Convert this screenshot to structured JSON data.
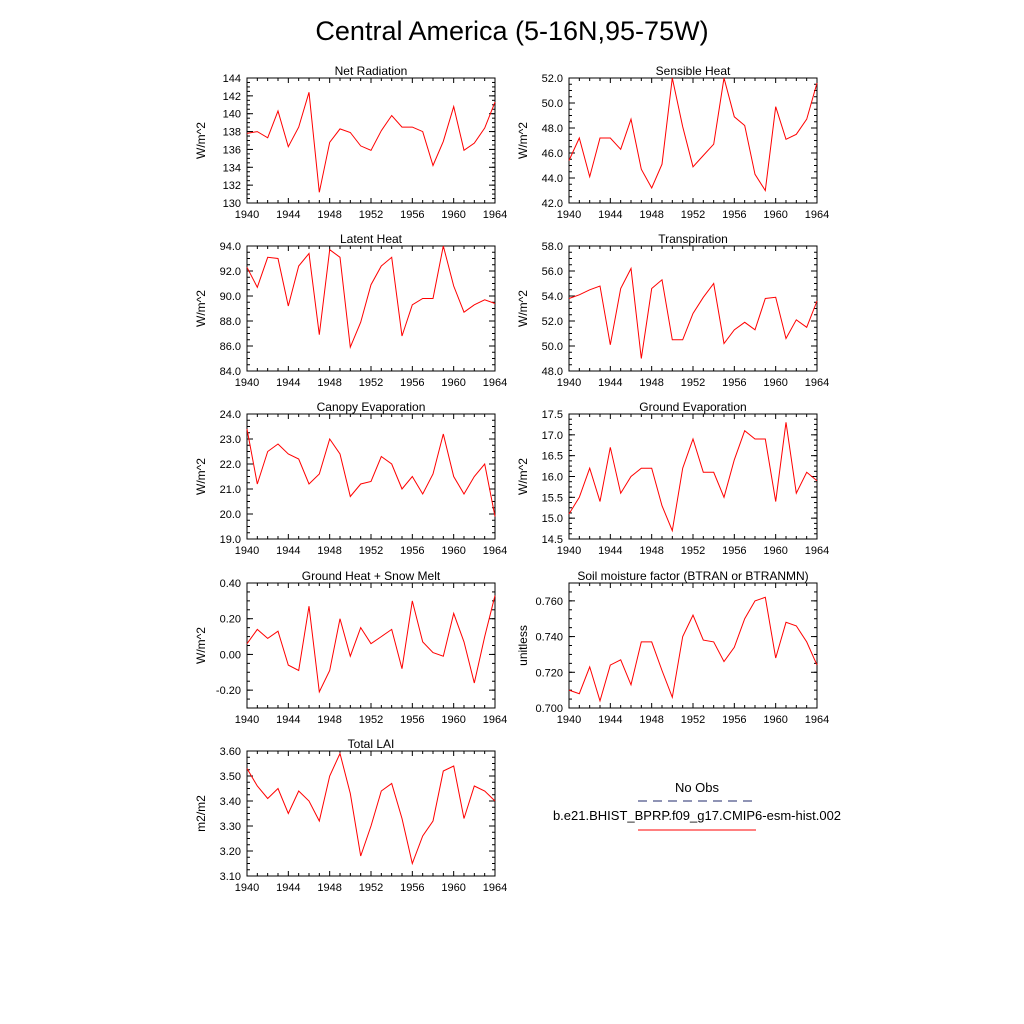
{
  "page": {
    "title": "Central America (5-16N,95-75W)"
  },
  "legend": {
    "entries": [
      {
        "label": "No Obs",
        "color": "#1f2a6b",
        "style": "dashed"
      },
      {
        "label": "b.e21.BHIST_BPRP.f09_g17.CMIP6-esm-hist.002",
        "color": "#ff0000",
        "style": "solid"
      }
    ]
  },
  "chart_data": [
    {
      "type": "line",
      "title": "Net Radiation",
      "ylabel": "W/m^2",
      "xlim": [
        1940,
        1964
      ],
      "ylim": [
        130,
        144
      ],
      "xticks": [
        "1940",
        "1944",
        "1948",
        "1952",
        "1956",
        "1960",
        "1964"
      ],
      "yticks": [
        "130",
        "132",
        "134",
        "136",
        "138",
        "140",
        "142",
        "144"
      ],
      "series": [
        {
          "color": "#ff0000",
          "x": [
            1940,
            1941,
            1942,
            1943,
            1944,
            1945,
            1946,
            1947,
            1948,
            1949,
            1950,
            1951,
            1952,
            1953,
            1954,
            1955,
            1956,
            1957,
            1958,
            1959,
            1960,
            1961,
            1962,
            1963,
            1964
          ],
          "values": [
            137.8,
            138.0,
            137.3,
            140.3,
            136.3,
            138.5,
            142.4,
            131.2,
            136.8,
            138.3,
            137.9,
            136.4,
            135.9,
            138.1,
            139.8,
            138.5,
            138.5,
            138.0,
            134.2,
            136.9,
            140.8,
            135.9,
            136.7,
            138.4,
            141.3
          ]
        }
      ]
    },
    {
      "type": "line",
      "title": "Sensible Heat",
      "ylabel": "W/m^2",
      "xlim": [
        1940,
        1964
      ],
      "ylim": [
        42.0,
        52.0
      ],
      "xticks": [
        "1940",
        "1944",
        "1948",
        "1952",
        "1956",
        "1960",
        "1964"
      ],
      "yticks": [
        "42.0",
        "44.0",
        "46.0",
        "48.0",
        "50.0",
        "52.0"
      ],
      "series": [
        {
          "color": "#ff0000",
          "x": [
            1940,
            1941,
            1942,
            1943,
            1944,
            1945,
            1946,
            1947,
            1948,
            1949,
            1950,
            1951,
            1952,
            1953,
            1954,
            1955,
            1956,
            1957,
            1958,
            1959,
            1960,
            1961,
            1962,
            1963,
            1964
          ],
          "values": [
            45.4,
            47.2,
            44.1,
            47.2,
            47.2,
            46.3,
            48.7,
            44.7,
            43.2,
            45.1,
            52.0,
            48.1,
            44.9,
            45.8,
            46.7,
            52.0,
            48.9,
            48.2,
            44.3,
            43.0,
            49.7,
            47.1,
            47.5,
            48.7,
            51.6
          ]
        }
      ]
    },
    {
      "type": "line",
      "title": "Latent Heat",
      "ylabel": "W/m^2",
      "xlim": [
        1940,
        1964
      ],
      "ylim": [
        84.0,
        94.0
      ],
      "xticks": [
        "1940",
        "1944",
        "1948",
        "1952",
        "1956",
        "1960",
        "1964"
      ],
      "yticks": [
        "84.0",
        "86.0",
        "88.0",
        "90.0",
        "92.0",
        "94.0"
      ],
      "series": [
        {
          "color": "#ff0000",
          "x": [
            1940,
            1941,
            1942,
            1943,
            1944,
            1945,
            1946,
            1947,
            1948,
            1949,
            1950,
            1951,
            1952,
            1953,
            1954,
            1955,
            1956,
            1957,
            1958,
            1959,
            1960,
            1961,
            1962,
            1963,
            1964
          ],
          "values": [
            92.3,
            90.7,
            93.1,
            93.0,
            89.2,
            92.4,
            93.4,
            86.9,
            93.7,
            93.1,
            85.9,
            87.9,
            90.9,
            92.4,
            93.1,
            86.8,
            89.3,
            89.8,
            89.8,
            94.0,
            90.8,
            88.7,
            89.3,
            89.7,
            89.4
          ]
        }
      ]
    },
    {
      "type": "line",
      "title": "Transpiration",
      "ylabel": "W/m^2",
      "xlim": [
        1940,
        1964
      ],
      "ylim": [
        48.0,
        58.0
      ],
      "xticks": [
        "1940",
        "1944",
        "1948",
        "1952",
        "1956",
        "1960",
        "1964"
      ],
      "yticks": [
        "48.0",
        "50.0",
        "52.0",
        "54.0",
        "56.0",
        "58.0"
      ],
      "series": [
        {
          "color": "#ff0000",
          "x": [
            1940,
            1941,
            1942,
            1943,
            1944,
            1945,
            1946,
            1947,
            1948,
            1949,
            1950,
            1951,
            1952,
            1953,
            1954,
            1955,
            1956,
            1957,
            1958,
            1959,
            1960,
            1961,
            1962,
            1963,
            1964
          ],
          "values": [
            53.8,
            54.1,
            54.5,
            54.8,
            50.1,
            54.6,
            56.2,
            49.0,
            54.6,
            55.3,
            50.5,
            50.5,
            52.6,
            53.9,
            55.0,
            50.2,
            51.3,
            51.9,
            51.3,
            53.8,
            53.9,
            50.6,
            52.1,
            51.5,
            53.6
          ]
        }
      ]
    },
    {
      "type": "line",
      "title": "Canopy Evaporation",
      "ylabel": "W/m^2",
      "xlim": [
        1940,
        1964
      ],
      "ylim": [
        19.0,
        24.0
      ],
      "xticks": [
        "1940",
        "1944",
        "1948",
        "1952",
        "1956",
        "1960",
        "1964"
      ],
      "yticks": [
        "19.0",
        "20.0",
        "21.0",
        "22.0",
        "23.0",
        "24.0"
      ],
      "series": [
        {
          "color": "#ff0000",
          "x": [
            1940,
            1941,
            1942,
            1943,
            1944,
            1945,
            1946,
            1947,
            1948,
            1949,
            1950,
            1951,
            1952,
            1953,
            1954,
            1955,
            1956,
            1957,
            1958,
            1959,
            1960,
            1961,
            1962,
            1963,
            1964
          ],
          "values": [
            23.4,
            21.2,
            22.5,
            22.8,
            22.4,
            22.2,
            21.2,
            21.6,
            23.0,
            22.4,
            20.7,
            21.2,
            21.3,
            22.3,
            22.0,
            21.0,
            21.5,
            20.8,
            21.6,
            23.2,
            21.5,
            20.8,
            21.5,
            22.0,
            19.9
          ]
        }
      ]
    },
    {
      "type": "line",
      "title": "Ground Evaporation",
      "ylabel": "W/m^2",
      "xlim": [
        1940,
        1964
      ],
      "ylim": [
        14.5,
        17.5
      ],
      "xticks": [
        "1940",
        "1944",
        "1948",
        "1952",
        "1956",
        "1960",
        "1964"
      ],
      "yticks": [
        "14.5",
        "15.0",
        "15.5",
        "16.0",
        "16.5",
        "17.0",
        "17.5"
      ],
      "series": [
        {
          "color": "#ff0000",
          "x": [
            1940,
            1941,
            1942,
            1943,
            1944,
            1945,
            1946,
            1947,
            1948,
            1949,
            1950,
            1951,
            1952,
            1953,
            1954,
            1955,
            1956,
            1957,
            1958,
            1959,
            1960,
            1961,
            1962,
            1963,
            1964
          ],
          "values": [
            15.1,
            15.5,
            16.2,
            15.4,
            16.7,
            15.6,
            16.0,
            16.2,
            16.2,
            15.3,
            14.7,
            16.2,
            16.9,
            16.1,
            16.1,
            15.5,
            16.4,
            17.1,
            16.9,
            16.9,
            15.4,
            17.3,
            15.6,
            16.1,
            15.9
          ]
        }
      ]
    },
    {
      "type": "line",
      "title": "Ground Heat + Snow Melt",
      "ylabel": "W/m^2",
      "xlim": [
        1940,
        1964
      ],
      "ylim": [
        -0.3,
        0.4
      ],
      "xticks": [
        "1940",
        "1944",
        "1948",
        "1952",
        "1956",
        "1960",
        "1964"
      ],
      "yticks": [
        "-0.20",
        "0.00",
        "0.20",
        "0.40"
      ],
      "series": [
        {
          "color": "#ff0000",
          "x": [
            1940,
            1941,
            1942,
            1943,
            1944,
            1945,
            1946,
            1947,
            1948,
            1949,
            1950,
            1951,
            1952,
            1953,
            1954,
            1955,
            1956,
            1957,
            1958,
            1959,
            1960,
            1961,
            1962,
            1963,
            1964
          ],
          "values": [
            0.06,
            0.14,
            0.09,
            0.13,
            -0.06,
            -0.09,
            0.27,
            -0.21,
            -0.09,
            0.2,
            -0.01,
            0.15,
            0.06,
            0.1,
            0.14,
            -0.08,
            0.3,
            0.07,
            0.01,
            -0.01,
            0.23,
            0.07,
            -0.16,
            0.1,
            0.33
          ]
        }
      ]
    },
    {
      "type": "line",
      "title": "Soil moisture factor (BTRAN or BTRANMN)",
      "ylabel": "unitless",
      "xlim": [
        1940,
        1964
      ],
      "ylim": [
        0.7,
        0.77
      ],
      "xticks": [
        "1940",
        "1944",
        "1948",
        "1952",
        "1956",
        "1960",
        "1964"
      ],
      "yticks": [
        "0.700",
        "0.720",
        "0.740",
        "0.760"
      ],
      "series": [
        {
          "color": "#ff0000",
          "x": [
            1940,
            1941,
            1942,
            1943,
            1944,
            1945,
            1946,
            1947,
            1948,
            1949,
            1950,
            1951,
            1952,
            1953,
            1954,
            1955,
            1956,
            1957,
            1958,
            1959,
            1960,
            1961,
            1962,
            1963,
            1964
          ],
          "values": [
            0.71,
            0.708,
            0.723,
            0.704,
            0.724,
            0.727,
            0.713,
            0.737,
            0.737,
            0.721,
            0.706,
            0.74,
            0.752,
            0.738,
            0.737,
            0.726,
            0.734,
            0.75,
            0.76,
            0.762,
            0.728,
            0.748,
            0.746,
            0.737,
            0.724
          ]
        }
      ]
    },
    {
      "type": "line",
      "title": "Total LAI",
      "ylabel": "m2/m2",
      "xlim": [
        1940,
        1964
      ],
      "ylim": [
        3.1,
        3.6
      ],
      "xticks": [
        "1940",
        "1944",
        "1948",
        "1952",
        "1956",
        "1960",
        "1964"
      ],
      "yticks": [
        "3.10",
        "3.20",
        "3.30",
        "3.40",
        "3.50",
        "3.60"
      ],
      "series": [
        {
          "color": "#ff0000",
          "x": [
            1940,
            1941,
            1942,
            1943,
            1944,
            1945,
            1946,
            1947,
            1948,
            1949,
            1950,
            1951,
            1952,
            1953,
            1954,
            1955,
            1956,
            1957,
            1958,
            1959,
            1960,
            1961,
            1962,
            1963,
            1964
          ],
          "values": [
            3.53,
            3.46,
            3.41,
            3.45,
            3.35,
            3.44,
            3.4,
            3.32,
            3.5,
            3.59,
            3.43,
            3.18,
            3.3,
            3.44,
            3.47,
            3.33,
            3.15,
            3.26,
            3.32,
            3.52,
            3.54,
            3.33,
            3.46,
            3.44,
            3.4
          ]
        }
      ]
    }
  ]
}
